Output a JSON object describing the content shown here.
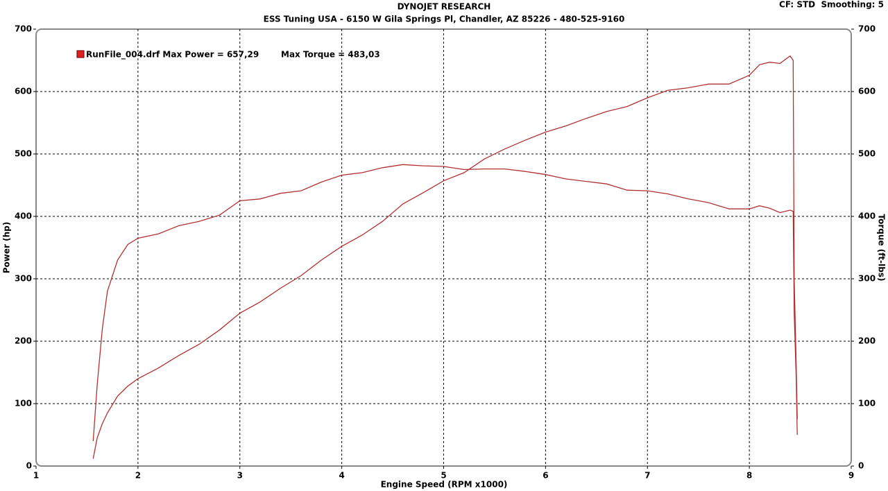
{
  "chart_data": {
    "type": "line",
    "title": "DYNOJET RESEARCH",
    "subtitle": "ESS Tuning USA - 6150 W Gila Springs Pl, Chandler, AZ 85226 - 480-525-9160",
    "annotation": "CF: STD  Smoothing: 5",
    "x_label": "Engine Speed (RPM x1000)",
    "y_label": "Power (hp)",
    "y2_label": "Torque (ft-lbs)",
    "x": [
      1.56,
      1.6,
      1.65,
      1.7,
      1.8,
      1.9,
      2.0,
      2.2,
      2.4,
      2.6,
      2.8,
      3.0,
      3.2,
      3.4,
      3.6,
      3.8,
      4.0,
      4.2,
      4.4,
      4.6,
      4.8,
      5.0,
      5.2,
      5.4,
      5.6,
      5.8,
      6.0,
      6.2,
      6.4,
      6.6,
      6.8,
      7.0,
      7.2,
      7.4,
      7.6,
      7.8,
      8.0,
      8.1,
      8.2,
      8.3,
      8.4,
      8.43,
      8.44,
      8.46,
      8.47
    ],
    "series": [
      {
        "name": "RunFile_004.drf Max Power = 657,29",
        "color": "#b03030",
        "values": [
          12,
          45,
          68,
          85,
          112,
          128,
          140,
          157,
          177,
          195,
          218,
          245,
          263,
          285,
          305,
          330,
          352,
          370,
          392,
          420,
          438,
          457,
          470,
          492,
          508,
          522,
          535,
          545,
          557,
          568,
          576,
          590,
          602,
          606,
          612,
          612,
          626,
          643,
          647,
          645,
          657,
          650,
          300,
          160,
          75
        ]
      },
      {
        "name": "Max Torque = 483,03",
        "color": "#b03030",
        "axis": "y2",
        "values": [
          40,
          130,
          220,
          280,
          330,
          355,
          365,
          372,
          385,
          392,
          402,
          425,
          428,
          437,
          441,
          455,
          466,
          470,
          478,
          483,
          481,
          480,
          475,
          476,
          476,
          472,
          467,
          460,
          456,
          452,
          442,
          441,
          436,
          428,
          422,
          412,
          412,
          417,
          413,
          406,
          410,
          408,
          245,
          140,
          50
        ]
      }
    ],
    "legend_color": "#e02020",
    "xlim": [
      1,
      9
    ],
    "xticks": [
      1,
      2,
      3,
      4,
      5,
      6,
      7,
      8,
      9
    ],
    "ylim": [
      0,
      700
    ],
    "yticks": [
      0,
      100,
      200,
      300,
      400,
      500,
      600,
      700
    ],
    "y2lim": [
      0,
      700
    ],
    "y2ticks": [
      0,
      100,
      200,
      300,
      400,
      500,
      600,
      700
    ],
    "grid": true
  }
}
